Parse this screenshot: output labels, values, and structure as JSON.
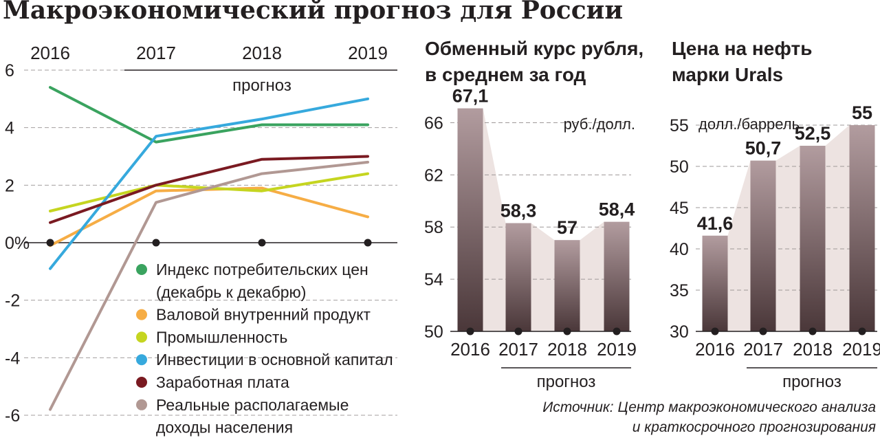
{
  "title": "Макроэкономический прогноз для России",
  "source_lines": [
    "Источник: Центр макроэкономического анализа",
    "и краткосрочного прогнозирования"
  ],
  "forecast_label": "прогноз",
  "chart_data": [
    {
      "type": "line",
      "title": "",
      "x": [
        "2016",
        "2017",
        "2018",
        "2019"
      ],
      "ylim": [
        -6,
        6
      ],
      "yticks": [
        "6",
        "4",
        "2",
        "0%",
        "-2",
        "-4",
        "-6"
      ],
      "ytick_values": [
        6,
        4,
        2,
        0,
        -2,
        -4,
        -6
      ],
      "grid": true,
      "legend_position": "bottom-center",
      "series": [
        {
          "name": "Индекс потребительских цен (декабрь к декабрю)",
          "color": "#3aa35f",
          "values": [
            5.4,
            3.5,
            4.1,
            4.1
          ]
        },
        {
          "name": "Валовой внутренний продукт",
          "color": "#f6ad45",
          "values": [
            -0.1,
            1.8,
            1.9,
            0.9
          ]
        },
        {
          "name": "Промышленность",
          "color": "#c5d520",
          "values": [
            1.1,
            2.0,
            1.8,
            2.4
          ]
        },
        {
          "name": "Инвестиции в основной капитал",
          "color": "#36a9dd",
          "values": [
            -0.9,
            3.7,
            4.3,
            5.0
          ]
        },
        {
          "name": "Заработная плата",
          "color": "#7a1a21",
          "values": [
            0.7,
            2.0,
            2.9,
            3.0
          ]
        },
        {
          "name": "Реальные располагаемые доходы населения",
          "color": "#b19893",
          "values": [
            -5.8,
            1.4,
            2.4,
            2.8
          ]
        }
      ],
      "legend_lines": [
        {
          "text": "Индекс потребительских цен",
          "series": 0
        },
        {
          "text": "(декабрь к декабрю)",
          "series": -1
        },
        {
          "text": "Валовой внутренний продукт",
          "series": 1
        },
        {
          "text": "Промышленность",
          "series": 2
        },
        {
          "text": "Инвестиции в основной капитал",
          "series": 3
        },
        {
          "text": "Заработная плата",
          "series": 4
        },
        {
          "text": "Реальные располагаемые",
          "series": 5
        },
        {
          "text": "доходы населения",
          "series": -1
        }
      ]
    },
    {
      "type": "bar",
      "title_lines": [
        "Обменный курс рубля,",
        "в среднем за год"
      ],
      "ylabel": "руб./долл.",
      "categories": [
        "2016",
        "2017",
        "2018",
        "2019"
      ],
      "values": [
        67.1,
        58.3,
        57,
        58.4
      ],
      "value_labels": [
        "67,1",
        "58,3",
        "57",
        "58,4"
      ],
      "ylim": [
        50,
        67.5
      ],
      "yticks": [
        66,
        62,
        58,
        54,
        50
      ],
      "grid": true
    },
    {
      "type": "bar",
      "title_lines": [
        "Цена на нефть",
        "марки Urals"
      ],
      "ylabel": "долл./баррель",
      "categories": [
        "2016",
        "2017",
        "2018",
        "2019"
      ],
      "values": [
        41.6,
        50.7,
        52.5,
        55
      ],
      "value_labels": [
        "41,6",
        "50,7",
        "52,5",
        "55"
      ],
      "ylim": [
        30,
        56
      ],
      "yticks": [
        55,
        50,
        45,
        40,
        35,
        30
      ],
      "grid": true
    }
  ]
}
